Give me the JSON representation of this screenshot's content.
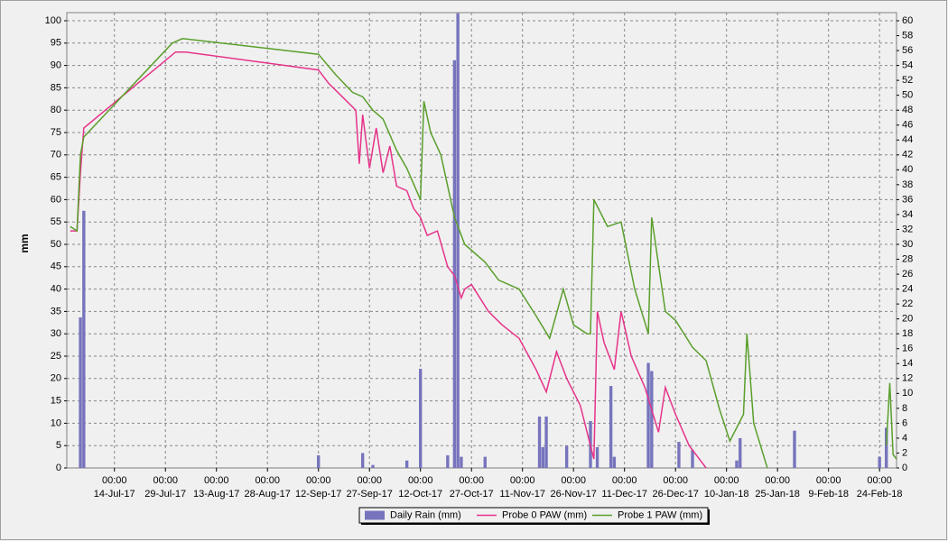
{
  "chart_data": {
    "type": "combo",
    "y_label": "mm",
    "legend": "bottom",
    "grid": true,
    "xlim": [
      "2017-06-30",
      "2018-03-01"
    ],
    "xticks": [
      {
        "value": "2017-07-14",
        "label": "14-Jul-17",
        "time": "00:00"
      },
      {
        "value": "2017-07-29",
        "label": "29-Jul-17",
        "time": "00:00"
      },
      {
        "value": "2017-08-13",
        "label": "13-Aug-17",
        "time": "00:00"
      },
      {
        "value": "2017-08-28",
        "label": "28-Aug-17",
        "time": "00:00"
      },
      {
        "value": "2017-09-12",
        "label": "12-Sep-17",
        "time": "00:00"
      },
      {
        "value": "2017-09-27",
        "label": "27-Sep-17",
        "time": "00:00"
      },
      {
        "value": "2017-10-12",
        "label": "12-Oct-17",
        "time": "00:00"
      },
      {
        "value": "2017-10-27",
        "label": "27-Oct-17",
        "time": "00:00"
      },
      {
        "value": "2017-11-11",
        "label": "11-Nov-17",
        "time": "00:00"
      },
      {
        "value": "2017-11-26",
        "label": "26-Nov-17",
        "time": "00:00"
      },
      {
        "value": "2017-12-11",
        "label": "11-Dec-17",
        "time": "00:00"
      },
      {
        "value": "2017-12-26",
        "label": "26-Dec-17",
        "time": "00:00"
      },
      {
        "value": "2018-01-10",
        "label": "10-Jan-18",
        "time": "00:00"
      },
      {
        "value": "2018-01-25",
        "label": "25-Jan-18",
        "time": "00:00"
      },
      {
        "value": "2018-02-09",
        "label": "9-Feb-18",
        "time": "00:00"
      },
      {
        "value": "2018-02-24",
        "label": "24-Feb-18",
        "time": "00:00"
      }
    ],
    "ylim": [
      0,
      100
    ],
    "yticks": [
      0,
      5,
      10,
      15,
      20,
      25,
      30,
      35,
      40,
      45,
      50,
      55,
      60,
      65,
      70,
      75,
      80,
      85,
      90,
      95,
      100
    ],
    "y2lim": [
      0,
      60
    ],
    "y2ticks": [
      0,
      2,
      4,
      6,
      8,
      10,
      12,
      14,
      16,
      18,
      20,
      22,
      24,
      26,
      28,
      30,
      32,
      34,
      36,
      38,
      40,
      42,
      44,
      46,
      48,
      50,
      52,
      54,
      56,
      58,
      60
    ],
    "series": [
      {
        "name": "Daily Rain (mm)",
        "type": "bar",
        "axis": "y2",
        "color": "#7774bd",
        "x": [
          "2017-07-04",
          "2017-07-05",
          "2017-09-12",
          "2017-09-25",
          "2017-09-28",
          "2017-10-08",
          "2017-10-12",
          "2017-10-20",
          "2017-10-22",
          "2017-10-23",
          "2017-10-24",
          "2017-10-31",
          "2017-11-16",
          "2017-11-17",
          "2017-11-18",
          "2017-11-24",
          "2017-12-01",
          "2017-12-03",
          "2017-12-07",
          "2017-12-08",
          "2017-12-18",
          "2017-12-19",
          "2017-12-27",
          "2017-12-31",
          "2018-01-13",
          "2018-01-14",
          "2018-01-30",
          "2018-02-24",
          "2018-02-26"
        ],
        "values": [
          20.2,
          34.5,
          1.7,
          2,
          0.4,
          1,
          13.3,
          1.7,
          54.7,
          61,
          1.5,
          1.5,
          6.9,
          2.8,
          6.9,
          3,
          6.3,
          2.8,
          11,
          1.5,
          14.1,
          13,
          3.5,
          2.4,
          1,
          4,
          5,
          1.5,
          5.4
        ]
      },
      {
        "name": "Probe 0 PAW (mm)",
        "type": "line",
        "color": "#e6338a",
        "x": [
          "2017-07-01",
          "2017-07-03",
          "2017-07-04",
          "2017-07-05",
          "2017-08-01",
          "2017-08-04",
          "2017-09-12",
          "2017-09-15",
          "2017-09-23",
          "2017-09-24",
          "2017-09-25",
          "2017-09-27",
          "2017-09-29",
          "2017-10-01",
          "2017-10-03",
          "2017-10-05",
          "2017-10-08",
          "2017-10-10",
          "2017-10-12",
          "2017-10-14",
          "2017-10-17",
          "2017-10-20",
          "2017-10-22",
          "2017-10-24",
          "2017-10-25",
          "2017-10-27",
          "2017-11-01",
          "2017-11-05",
          "2017-11-10",
          "2017-11-15",
          "2017-11-18",
          "2017-11-21",
          "2017-11-24",
          "2017-11-28",
          "2017-12-01",
          "2017-12-02",
          "2017-12-03",
          "2017-12-05",
          "2017-12-08",
          "2017-12-10",
          "2017-12-13",
          "2017-12-17",
          "2017-12-21",
          "2017-12-23",
          "2017-12-26",
          "2017-12-30",
          "2018-01-04"
        ],
        "values": [
          53,
          53,
          66,
          76,
          93,
          93,
          89,
          86,
          80,
          68,
          79,
          67,
          76,
          66,
          72,
          63,
          62,
          58,
          56,
          52,
          53,
          45,
          43,
          38,
          40,
          41,
          35,
          32,
          29,
          22,
          17,
          26,
          20,
          14,
          5,
          2,
          35,
          28,
          22,
          35,
          25,
          18,
          8,
          18,
          12,
          5,
          0
        ]
      },
      {
        "name": "Probe 1 PAW (mm)",
        "type": "line",
        "color": "#5a9f2c",
        "x": [
          "2017-07-01",
          "2017-07-03",
          "2017-07-04",
          "2017-07-05",
          "2017-07-31",
          "2017-08-03",
          "2017-09-12",
          "2017-09-17",
          "2017-09-22",
          "2017-09-25",
          "2017-09-28",
          "2017-10-01",
          "2017-10-05",
          "2017-10-08",
          "2017-10-12",
          "2017-10-13",
          "2017-10-15",
          "2017-10-18",
          "2017-10-22",
          "2017-10-25",
          "2017-10-31",
          "2017-11-04",
          "2017-11-10",
          "2017-11-15",
          "2017-11-19",
          "2017-11-23",
          "2017-11-26",
          "2017-11-30",
          "2017-12-01",
          "2017-12-02",
          "2017-12-06",
          "2017-12-10",
          "2017-12-14",
          "2017-12-18",
          "2017-12-19",
          "2017-12-23",
          "2017-12-26",
          "2017-12-31",
          "2018-01-04",
          "2018-01-08",
          "2018-01-11",
          "2018-01-15",
          "2018-01-16",
          "2018-01-18",
          "2018-01-22",
          "2018-02-10",
          "2018-02-26",
          "2018-02-27",
          "2018-02-28",
          "2018-03-01"
        ],
        "values": [
          54,
          53,
          70,
          74,
          95,
          96,
          92.5,
          88,
          84,
          83,
          80,
          78,
          71,
          67,
          60,
          82,
          75,
          70,
          56,
          50,
          46,
          42,
          40,
          34,
          29,
          40,
          32,
          30,
          30,
          60,
          54,
          55,
          40,
          30,
          56,
          35,
          33,
          27,
          24,
          13,
          6,
          12,
          30,
          10,
          0,
          null,
          5,
          19,
          3,
          2
        ]
      }
    ]
  }
}
